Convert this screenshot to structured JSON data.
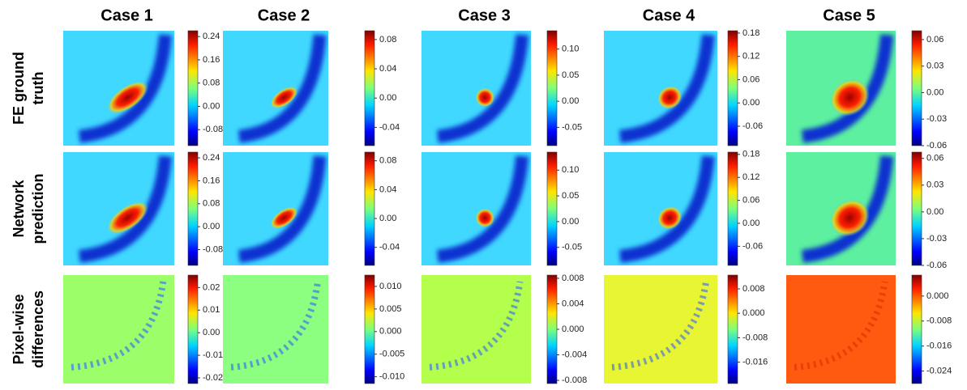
{
  "columns": [
    "Case 1",
    "Case 2",
    "Case 3",
    "Case 4",
    "Case 5"
  ],
  "rows": [
    [
      "FE ground",
      "truth"
    ],
    [
      "Network",
      "prediction"
    ],
    [
      "Pixel-wise",
      "differences"
    ]
  ],
  "colorbars": [
    [
      {
        "lim": [
          -0.135,
          0.26
        ],
        "ticks": [
          0.24,
          0.16,
          0.08,
          {
            "value": 0,
            "label": "0.00"
          },
          -0.08
        ]
      },
      {
        "lim": [
          -0.065,
          0.092
        ],
        "ticks": [
          0.08,
          0.04,
          {
            "value": 0,
            "label": "0.00"
          },
          -0.04
        ]
      },
      {
        "lim": [
          -0.085,
          0.135
        ],
        "ticks": [
          {
            "value": 0.1,
            "label": "0.10"
          },
          0.05,
          {
            "value": 0,
            "label": "0.00"
          },
          -0.05
        ]
      },
      {
        "lim": [
          -0.11,
          0.186
        ],
        "ticks": [
          0.18,
          0.12,
          0.06,
          {
            "value": 0,
            "label": "0.00"
          },
          -0.06
        ]
      },
      {
        "lim": [
          -0.06,
          0.07
        ],
        "ticks": [
          0.06,
          0.03,
          {
            "value": 0,
            "label": "0.00"
          },
          -0.03,
          -0.06
        ]
      }
    ],
    [
      {
        "lim": [
          -0.135,
          0.26
        ],
        "ticks": [
          0.24,
          0.16,
          0.08,
          {
            "value": 0,
            "label": "0.00"
          },
          -0.08
        ]
      },
      {
        "lim": [
          -0.065,
          0.092
        ],
        "ticks": [
          0.08,
          0.04,
          {
            "value": 0,
            "label": "0.00"
          },
          -0.04
        ]
      },
      {
        "lim": [
          -0.085,
          0.135
        ],
        "ticks": [
          {
            "value": 0.1,
            "label": "0.10"
          },
          0.05,
          {
            "value": 0,
            "label": "0.00"
          },
          -0.05
        ]
      },
      {
        "lim": [
          -0.11,
          0.186
        ],
        "ticks": [
          0.18,
          0.12,
          0.06,
          {
            "value": 0,
            "label": "0.00"
          },
          -0.06
        ]
      },
      {
        "lim": [
          -0.06,
          0.067
        ],
        "ticks": [
          0.06,
          0.03,
          {
            "value": 0,
            "label": "0.00"
          },
          -0.03,
          -0.06
        ]
      }
    ],
    [
      {
        "lim": [
          -0.0225,
          0.0255
        ],
        "ticks": [
          0.02,
          0.01,
          {
            "value": 0,
            "label": "0.00"
          },
          -0.01,
          -0.02
        ]
      },
      {
        "lim": [
          -0.0115,
          0.0125
        ],
        "ticks": [
          {
            "value": 0.01,
            "label": "0.010"
          },
          0.005,
          {
            "value": 0,
            "label": "0.000"
          },
          -0.005,
          {
            "value": -0.01,
            "label": "-0.010"
          }
        ]
      },
      {
        "lim": [
          -0.0085,
          0.0085
        ],
        "ticks": [
          0.008,
          0.004,
          {
            "value": 0,
            "label": "0.000"
          },
          -0.004,
          -0.008
        ]
      },
      {
        "lim": [
          -0.023,
          0.0125
        ],
        "ticks": [
          0.008,
          {
            "value": 0,
            "label": "0.000"
          },
          -0.008,
          -0.016
        ]
      },
      {
        "lim": [
          -0.028,
          0.0067
        ],
        "ticks": [
          {
            "value": 0,
            "label": "0.000"
          },
          -0.008,
          -0.016,
          -0.024
        ]
      }
    ]
  ]
}
